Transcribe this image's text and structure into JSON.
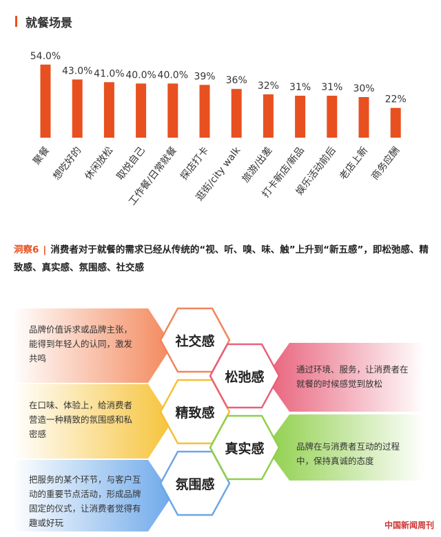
{
  "section": {
    "title": "就餐场景"
  },
  "chart_data": {
    "type": "bar",
    "categories": [
      "聚餐",
      "想吃好的",
      "休闲放松",
      "取悦自己",
      "工作餐/日常就餐",
      "探店打卡",
      "逛街/city walk",
      "旅游/出差",
      "打卡新店/新品",
      "娱乐活动前后",
      "老店上新",
      "商务应酬"
    ],
    "values": [
      54.0,
      43.0,
      41.0,
      40.0,
      40.0,
      39,
      36,
      32,
      31,
      31,
      30,
      22
    ],
    "value_labels": [
      "54.0%",
      "43.0%",
      "41.0%",
      "40.0%",
      "40.0%",
      "39%",
      "36%",
      "32%",
      "31%",
      "31%",
      "30%",
      "22%"
    ],
    "ylim": [
      0,
      60
    ],
    "color": "#e8501f",
    "grid": false
  },
  "insight": {
    "tag": "洞察6",
    "text": "消费者对于就餐的需求已经从传统的“视、听、嗅、味、触”上升到“新五感”，即松弛感、精致感、真实感、氛围感、社交感"
  },
  "senses": [
    {
      "name": "社交感",
      "desc": "品牌价值诉求或品牌主张，能得到年轻人的认同，激发共鸣",
      "color": "#f0845a"
    },
    {
      "name": "松弛感",
      "desc": "通过环境、服务，让消费者在就餐的时候感觉到放松",
      "color": "#e8607a"
    },
    {
      "name": "精致感",
      "desc": "在口味、体验上，给消费者营造一种精致的氛围感和私密感",
      "color": "#f5c035"
    },
    {
      "name": "真实感",
      "desc": "品牌在与消费者互动的过程中，保持真诚的态度",
      "color": "#8fcf4a"
    },
    {
      "name": "氛围感",
      "desc": "把服务的某个环节，与客户互动的重要节点活动，形成品牌固定的仪式，让消费者觉得有趣或好玩",
      "color": "#6aa6e8"
    }
  ],
  "watermark": "中国新闻周刊"
}
